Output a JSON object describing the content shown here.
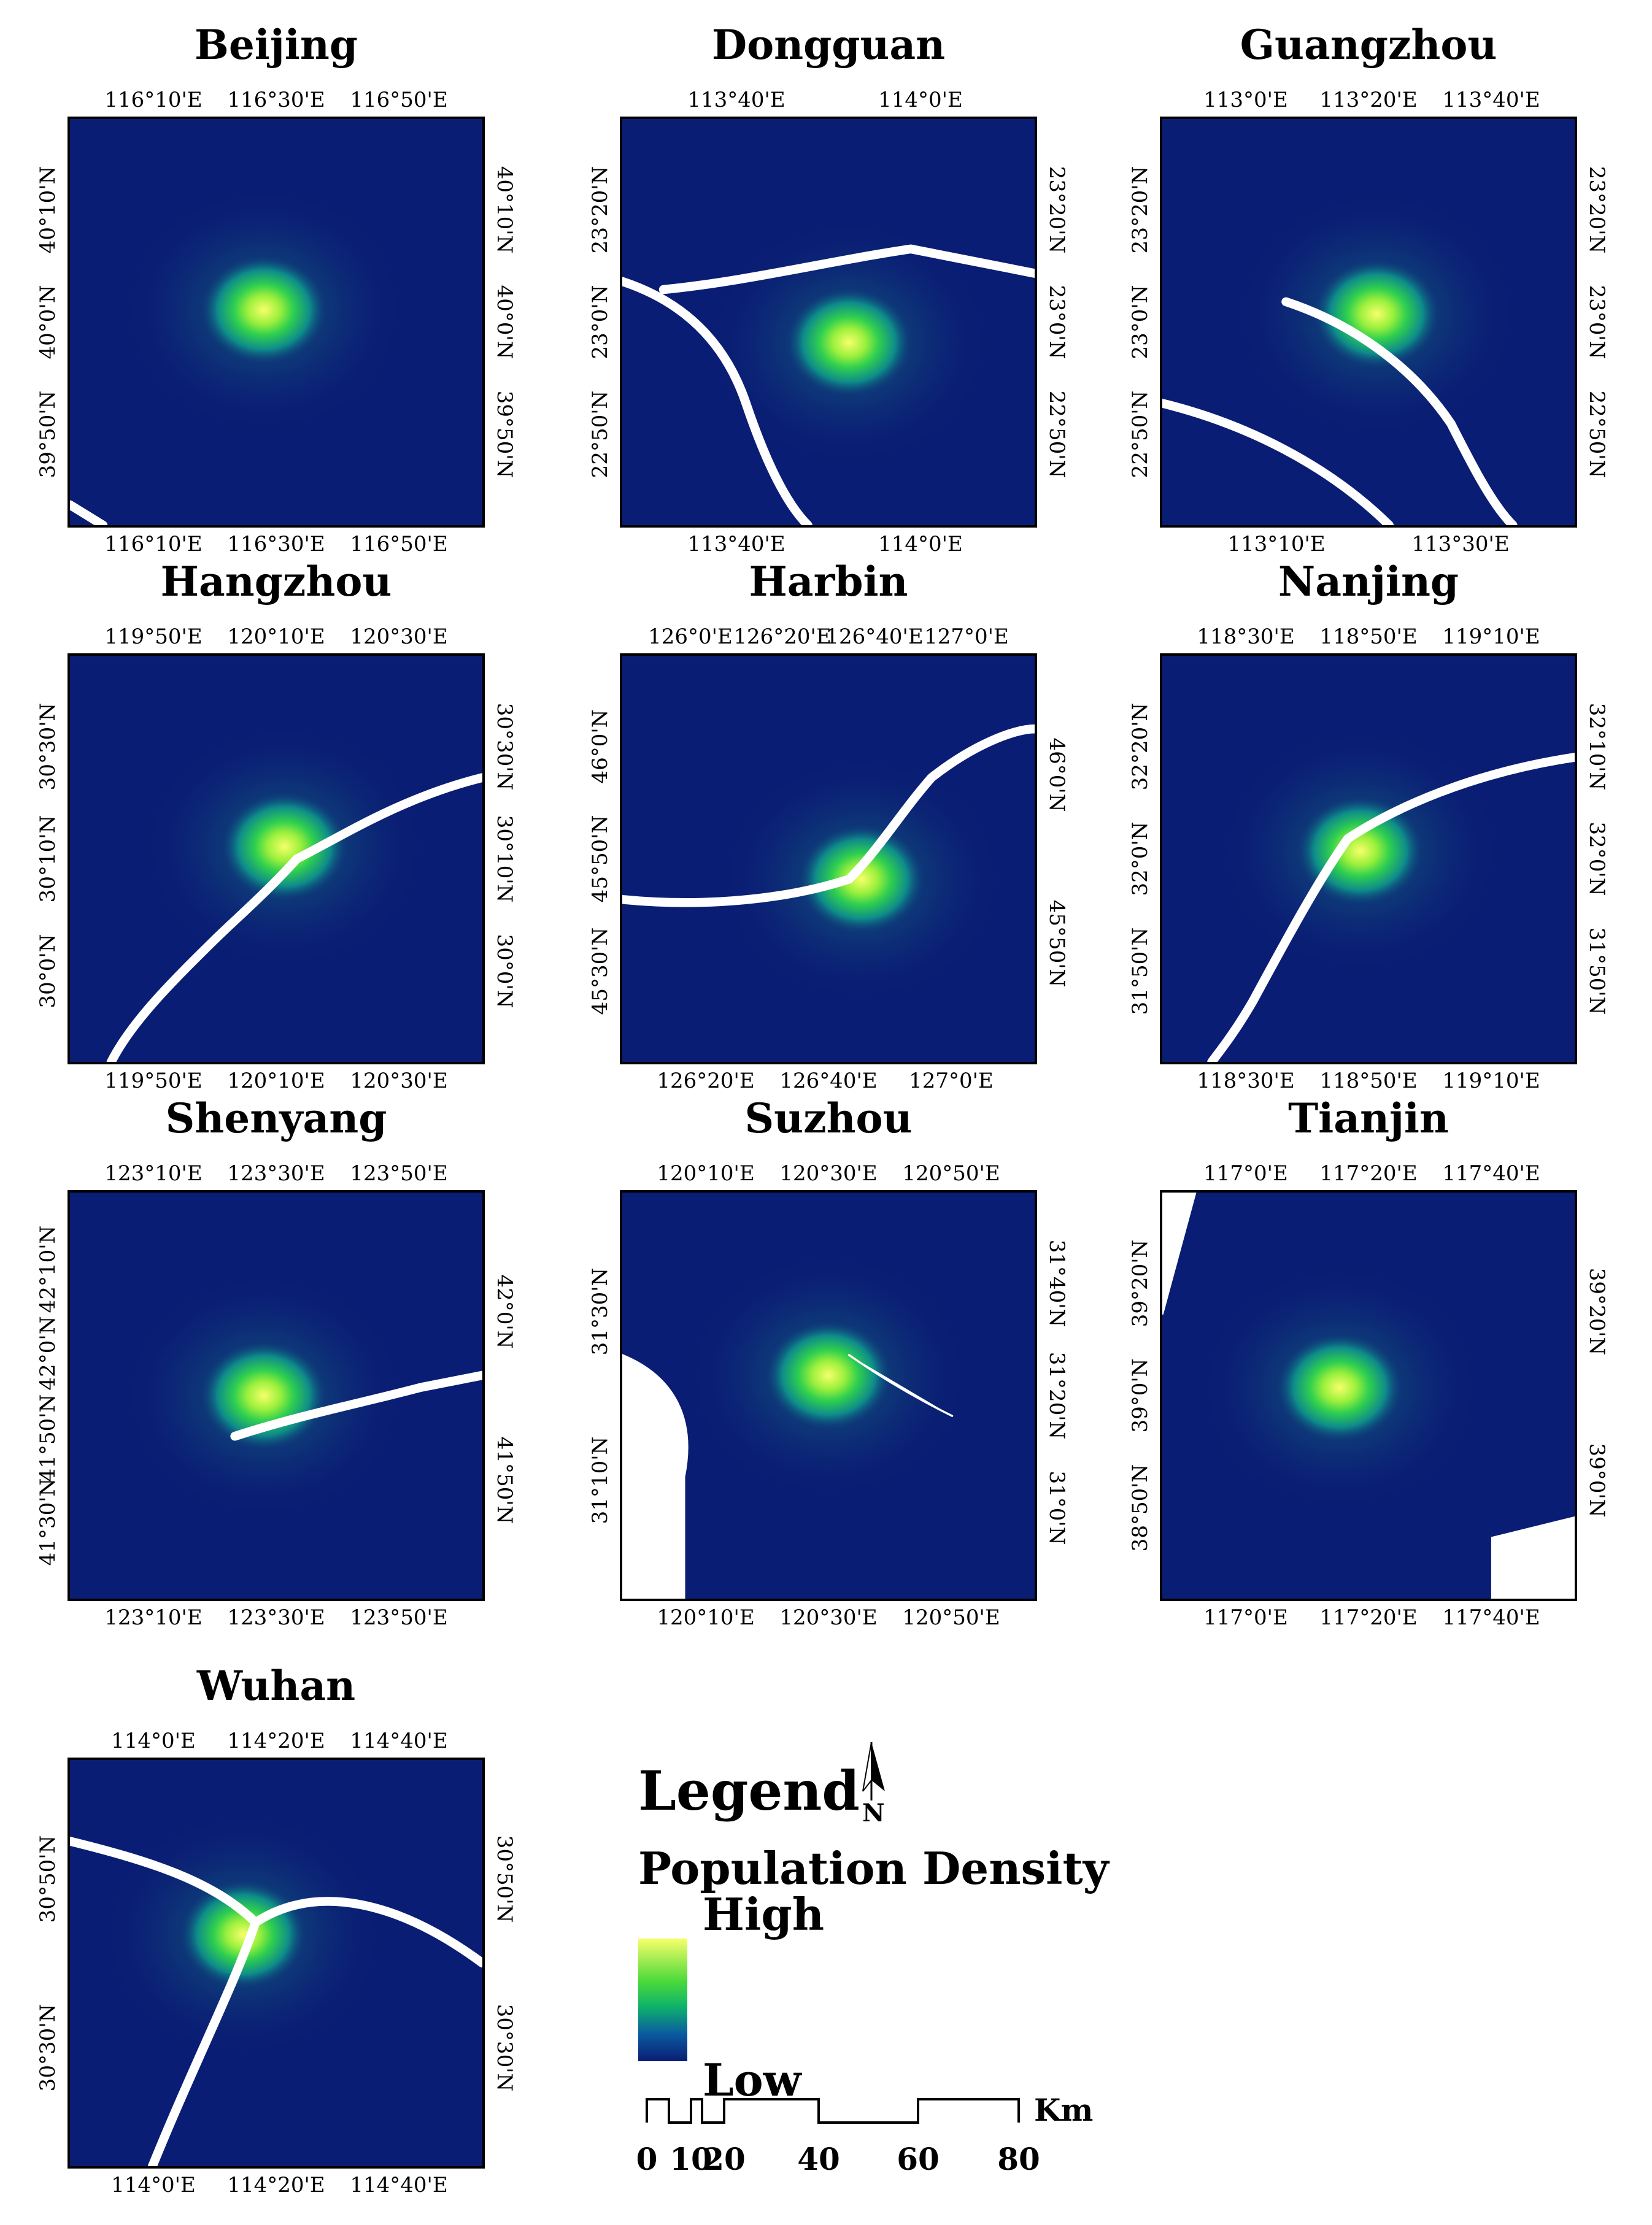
{
  "cities": [
    {
      "name": "Beijing",
      "top": [
        "116°10'E",
        "116°30'E",
        "116°50'E"
      ],
      "bottom": [
        "116°10'E",
        "116°30'E",
        "116°50'E"
      ],
      "left": [
        "39°50'N",
        "40°0'N",
        "40°10'N"
      ],
      "right": [
        "39°50'N",
        "40°0'N",
        "40°10'N"
      ]
    },
    {
      "name": "Dongguan",
      "top": [
        "113°40'E",
        "114°0'E"
      ],
      "bottom": [
        "113°40'E",
        "114°0'E"
      ],
      "left": [
        "22°50'N",
        "23°0'N",
        "23°20'N"
      ],
      "right": [
        "22°50'N",
        "23°0'N",
        "23°20'N"
      ]
    },
    {
      "name": "Guangzhou",
      "top": [
        "113°0'E",
        "113°20'E",
        "113°40'E"
      ],
      "bottom": [
        "113°10'E",
        "113°30'E"
      ],
      "left": [
        "22°50'N",
        "23°0'N",
        "23°20'N"
      ],
      "right": [
        "22°50'N",
        "23°0'N",
        "23°20'N"
      ]
    },
    {
      "name": "Hangzhou",
      "top": [
        "119°50'E",
        "120°10'E",
        "120°30'E"
      ],
      "bottom": [
        "119°50'E",
        "120°10'E",
        "120°30'E"
      ],
      "left": [
        "30°0'N",
        "30°10'N",
        "30°30'N"
      ],
      "right": [
        "30°0'N",
        "30°10'N",
        "30°30'N"
      ]
    },
    {
      "name": "Harbin",
      "top": [
        "126°0'E",
        "126°20'E",
        "126°40'E",
        "127°0'E"
      ],
      "bottom": [
        "126°20'E",
        "126°40'E",
        "127°0'E"
      ],
      "left": [
        "45°30'N",
        "45°50'N",
        "46°0'N"
      ],
      "right": [
        "45°50'N",
        "46°0'N"
      ]
    },
    {
      "name": "Nanjing",
      "top": [
        "118°30'E",
        "118°50'E",
        "119°10'E"
      ],
      "bottom": [
        "118°30'E",
        "118°50'E",
        "119°10'E"
      ],
      "left": [
        "31°50'N",
        "32°0'N",
        "32°20'N"
      ],
      "right": [
        "31°50'N",
        "32°0'N",
        "32°10'N"
      ]
    },
    {
      "name": "Shenyang",
      "top": [
        "123°10'E",
        "123°30'E",
        "123°50'E"
      ],
      "bottom": [
        "123°10'E",
        "123°30'E",
        "123°50'E"
      ],
      "left": [
        "41°30'N",
        "41°50'N",
        "42°0'N",
        "42°10'N"
      ],
      "right": [
        "41°50'N",
        "42°0'N"
      ]
    },
    {
      "name": "Suzhou",
      "top": [
        "120°10'E",
        "120°30'E",
        "120°50'E"
      ],
      "bottom": [
        "120°10'E",
        "120°30'E",
        "120°50'E"
      ],
      "left": [
        "31°10'N",
        "31°30'N"
      ],
      "right": [
        "31°0'N",
        "31°20'N",
        "31°40'N"
      ]
    },
    {
      "name": "Tianjin",
      "top": [
        "117°0'E",
        "117°20'E",
        "117°40'E"
      ],
      "bottom": [
        "117°0'E",
        "117°20'E",
        "117°40'E"
      ],
      "left": [
        "38°50'N",
        "39°0'N",
        "39°20'N"
      ],
      "right": [
        "39°0'N",
        "39°20'N"
      ]
    },
    {
      "name": "Wuhan",
      "top": [
        "114°0'E",
        "114°20'E",
        "114°40'E"
      ],
      "bottom": [
        "114°0'E",
        "114°20'E",
        "114°40'E"
      ],
      "left": [
        "30°30'N",
        "30°50'N"
      ],
      "right": [
        "30°30'N",
        "30°50'N"
      ]
    }
  ],
  "legend": {
    "title": "Legend",
    "north_label": "N",
    "subtitle": "Population Density",
    "high_label": "High",
    "low_label": "Low",
    "scale_ticks": [
      "0",
      "10",
      "20",
      "40",
      "60",
      "80"
    ],
    "scale_unit": "Km"
  },
  "colors": {
    "low": "#0a1d74",
    "mid": "#0fb46a",
    "high": "#f7ff6a",
    "water": "#ffffff"
  }
}
